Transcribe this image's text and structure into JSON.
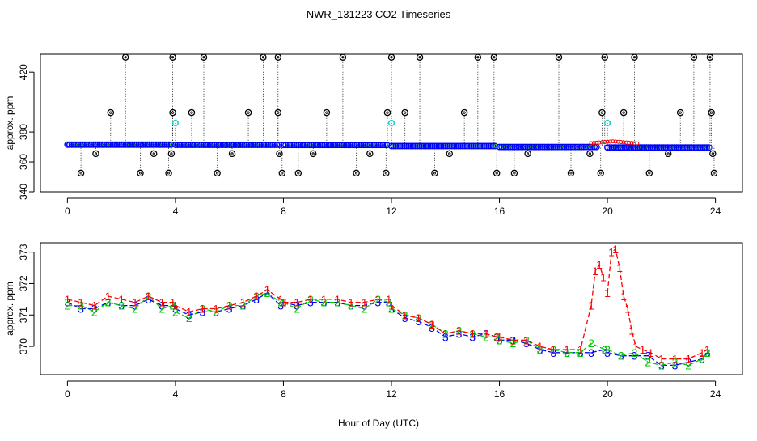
{
  "chart_data": {
    "title": "NWR_131223  CO2 Timeseries",
    "xlabel": "Hour of Day (UTC)",
    "colors": {
      "series1": "#ff0000",
      "series2": "#00cc00",
      "series3": "#0000ff",
      "flag": "#00cccc",
      "outlier": "#000000"
    },
    "panels": [
      {
        "id": "top",
        "type": "scatter",
        "ylabel": "approx. ppm",
        "xlim": [
          -1,
          25
        ],
        "ylim": [
          340,
          432
        ],
        "xticks": [
          0,
          4,
          8,
          12,
          16,
          20,
          24
        ],
        "yticks": [
          340,
          360,
          380,
          420
        ],
        "baseline_segments": [
          {
            "x0": 0.0,
            "x1": 3.9,
            "y": 371.5
          },
          {
            "x0": 4.0,
            "x1": 7.9,
            "y": 371.4
          },
          {
            "x0": 8.0,
            "x1": 11.9,
            "y": 371.3
          },
          {
            "x0": 12.0,
            "x1": 15.9,
            "y": 370.6
          },
          {
            "x0": 16.0,
            "x1": 19.6,
            "y": 370.0
          },
          {
            "x0": 20.0,
            "x1": 23.8,
            "y": 369.6
          }
        ],
        "cyan_flags": [
          [
            4.0,
            386
          ],
          [
            12.0,
            386
          ],
          [
            20.0,
            386
          ]
        ],
        "outliers_high": [
          [
            2.15,
            430
          ],
          [
            3.9,
            430
          ],
          [
            5.05,
            430
          ],
          [
            7.25,
            430
          ],
          [
            7.8,
            430
          ],
          [
            10.2,
            430
          ],
          [
            12.0,
            430
          ],
          [
            13.05,
            430
          ],
          [
            15.2,
            430
          ],
          [
            15.8,
            430
          ],
          [
            18.2,
            430
          ],
          [
            19.9,
            430
          ],
          [
            21.0,
            430
          ],
          [
            23.2,
            430
          ],
          [
            23.8,
            430
          ]
        ],
        "outliers_mid": [
          [
            1.6,
            393
          ],
          [
            3.9,
            393
          ],
          [
            4.6,
            393
          ],
          [
            6.7,
            393
          ],
          [
            7.8,
            393
          ],
          [
            9.6,
            393
          ],
          [
            11.85,
            393
          ],
          [
            12.5,
            393
          ],
          [
            14.7,
            393
          ],
          [
            19.8,
            393
          ],
          [
            20.6,
            393
          ],
          [
            22.7,
            393
          ],
          [
            23.85,
            393
          ]
        ],
        "outliers_low": [
          [
            0.5,
            352.5
          ],
          [
            2.7,
            352.5
          ],
          [
            3.75,
            352.5
          ],
          [
            5.55,
            352.5
          ],
          [
            7.95,
            352.5
          ],
          [
            8.55,
            352.5
          ],
          [
            10.7,
            352.5
          ],
          [
            11.8,
            352.5
          ],
          [
            13.6,
            352.5
          ],
          [
            15.9,
            352.5
          ],
          [
            16.55,
            352.5
          ],
          [
            18.65,
            352.5
          ],
          [
            19.75,
            352.5
          ],
          [
            21.55,
            352.5
          ],
          [
            23.95,
            352.5
          ]
        ],
        "outliers_near": [
          [
            1.05,
            365.5
          ],
          [
            3.2,
            365.5
          ],
          [
            3.85,
            365.5
          ],
          [
            6.1,
            365.5
          ],
          [
            7.85,
            365.5
          ],
          [
            9.1,
            365.5
          ],
          [
            11.2,
            365.5
          ],
          [
            14.15,
            365.5
          ],
          [
            17.05,
            365.5
          ],
          [
            19.35,
            365.5
          ],
          [
            22.25,
            365.5
          ],
          [
            23.9,
            365.5
          ]
        ]
      },
      {
        "id": "bottom",
        "type": "line",
        "ylabel": "approx. ppm",
        "xlim": [
          -1,
          25
        ],
        "ylim": [
          369.1,
          373.3
        ],
        "xticks": [
          0,
          4,
          8,
          12,
          16,
          20,
          24
        ],
        "yticks": [
          370,
          371,
          372,
          373
        ],
        "series": [
          {
            "name": "3",
            "label": "3",
            "x": [
              0.0,
              0.5,
              1.0,
              1.5,
              2.0,
              2.5,
              3.0,
              3.5,
              3.9,
              4.0,
              4.5,
              5.0,
              5.5,
              6.0,
              6.5,
              7.0,
              7.4,
              7.9,
              8.0,
              8.5,
              9.0,
              9.5,
              10.0,
              10.5,
              11.0,
              11.5,
              11.9,
              12.0,
              12.5,
              13.0,
              13.5,
              14.0,
              14.5,
              15.0,
              15.5,
              15.9,
              16.0,
              16.5,
              17.0,
              17.5,
              18.0,
              18.5,
              19.0,
              19.4,
              19.9,
              20.0,
              20.5,
              21.0,
              21.5,
              22.0,
              22.5,
              23.0,
              23.5,
              23.7
            ],
            "values": [
              371.4,
              371.2,
              371.2,
              371.4,
              371.3,
              371.3,
              371.5,
              371.3,
              371.3,
              371.2,
              371.0,
              371.1,
              371.1,
              371.2,
              371.3,
              371.5,
              371.7,
              371.3,
              371.4,
              371.3,
              371.4,
              371.4,
              371.4,
              371.3,
              371.3,
              371.4,
              371.4,
              371.2,
              370.9,
              370.8,
              370.6,
              370.3,
              370.4,
              370.3,
              370.4,
              370.3,
              370.2,
              370.2,
              370.1,
              369.9,
              369.8,
              369.8,
              369.8,
              369.8,
              369.9,
              369.8,
              369.7,
              369.7,
              369.7,
              369.4,
              369.4,
              369.5,
              369.6,
              369.8
            ]
          },
          {
            "name": "2",
            "label": "2",
            "x": [
              0.0,
              0.5,
              1.0,
              1.5,
              2.0,
              2.5,
              3.0,
              3.5,
              3.9,
              4.0,
              4.5,
              5.0,
              5.5,
              6.0,
              6.5,
              7.0,
              7.4,
              7.9,
              8.0,
              8.5,
              9.0,
              9.5,
              10.0,
              10.5,
              11.0,
              11.5,
              11.9,
              12.0,
              12.5,
              13.0,
              13.5,
              14.0,
              14.5,
              15.0,
              15.5,
              15.9,
              16.0,
              16.5,
              17.0,
              17.5,
              18.0,
              18.5,
              19.0,
              19.4,
              19.9,
              20.0,
              20.5,
              21.0,
              21.5,
              22.0,
              22.5,
              23.0,
              23.5,
              23.7
            ],
            "values": [
              371.3,
              371.3,
              371.1,
              371.4,
              371.3,
              371.2,
              371.6,
              371.2,
              371.3,
              371.1,
              370.9,
              371.2,
              371.1,
              371.3,
              371.3,
              371.6,
              371.7,
              371.4,
              371.4,
              371.2,
              371.5,
              371.4,
              371.4,
              371.3,
              371.2,
              371.5,
              371.4,
              371.2,
              371.0,
              370.9,
              370.7,
              370.4,
              370.5,
              370.4,
              370.3,
              370.3,
              370.2,
              370.1,
              370.2,
              369.9,
              369.9,
              369.8,
              369.8,
              370.1,
              369.9,
              369.9,
              369.7,
              369.8,
              369.5,
              369.4,
              369.5,
              369.4,
              369.6,
              369.8
            ]
          },
          {
            "name": "1",
            "label": "1",
            "x": [
              0.0,
              0.5,
              1.0,
              1.5,
              2.0,
              2.5,
              3.0,
              3.5,
              3.9,
              4.0,
              4.5,
              5.0,
              5.5,
              6.0,
              6.5,
              7.0,
              7.4,
              7.9,
              8.0,
              8.5,
              9.0,
              9.5,
              10.0,
              10.5,
              11.0,
              11.5,
              11.9,
              12.0,
              12.5,
              13.0,
              13.5,
              14.0,
              14.5,
              15.0,
              15.5,
              15.9,
              16.0,
              16.5,
              17.0,
              17.5,
              18.0,
              18.5,
              19.0,
              19.4,
              19.55,
              19.7,
              19.85,
              20.0,
              20.15,
              20.3,
              20.45,
              20.6,
              20.75,
              20.9,
              21.05,
              21.3,
              21.6,
              22.0,
              22.5,
              23.0,
              23.5,
              23.7
            ],
            "values": [
              371.5,
              371.4,
              371.3,
              371.6,
              371.5,
              371.4,
              371.6,
              371.4,
              371.4,
              371.3,
              371.1,
              371.2,
              371.2,
              371.3,
              371.4,
              371.6,
              371.8,
              371.5,
              371.4,
              371.4,
              371.5,
              371.5,
              371.5,
              371.4,
              371.4,
              371.5,
              371.5,
              371.3,
              371.0,
              370.9,
              370.7,
              370.4,
              370.5,
              370.4,
              370.4,
              370.3,
              370.3,
              370.2,
              370.2,
              370.0,
              369.9,
              369.9,
              369.9,
              371.3,
              372.4,
              372.6,
              372.2,
              371.7,
              373.0,
              373.1,
              372.5,
              371.6,
              371.2,
              370.5,
              370.0,
              369.9,
              369.8,
              369.6,
              369.6,
              369.6,
              369.8,
              369.9
            ]
          }
        ]
      }
    ]
  }
}
